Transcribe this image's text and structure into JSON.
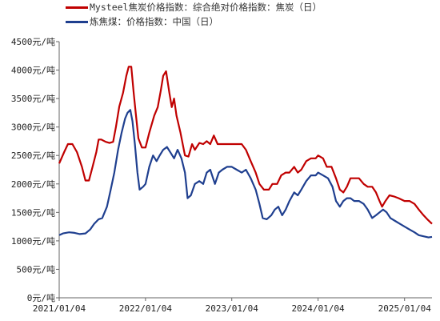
{
  "chart_data": {
    "type": "line",
    "x_ticks": [
      "2021/01/04",
      "2022/01/04",
      "2023/01/04",
      "2024/01/04",
      "2025/01/04"
    ],
    "y_ticks": [
      "0元/吨",
      "500元/吨",
      "1000元/吨",
      "1500元/吨",
      "2000元/吨",
      "2500元/吨",
      "3000元/吨",
      "3500元/吨",
      "4000元/吨",
      "4500元/吨"
    ],
    "ylim": [
      0,
      4500
    ],
    "xlim": [
      "2021-01-04",
      "2025-04-30"
    ],
    "grid": false,
    "legend_position": "top-left",
    "series": [
      {
        "name": "Mysteel焦炭价格指数：综合绝对价格指数：焦炭（日）",
        "color": "#c00000",
        "points": [
          [
            "2021-01-04",
            2360
          ],
          [
            "2021-01-25",
            2560
          ],
          [
            "2021-02-10",
            2700
          ],
          [
            "2021-03-01",
            2700
          ],
          [
            "2021-03-20",
            2560
          ],
          [
            "2021-04-10",
            2300
          ],
          [
            "2021-04-25",
            2060
          ],
          [
            "2021-05-10",
            2060
          ],
          [
            "2021-05-25",
            2300
          ],
          [
            "2021-06-10",
            2560
          ],
          [
            "2021-06-20",
            2780
          ],
          [
            "2021-07-01",
            2780
          ],
          [
            "2021-07-20",
            2740
          ],
          [
            "2021-08-05",
            2720
          ],
          [
            "2021-08-20",
            2740
          ],
          [
            "2021-09-01",
            3000
          ],
          [
            "2021-09-15",
            3360
          ],
          [
            "2021-10-01",
            3600
          ],
          [
            "2021-10-15",
            3900
          ],
          [
            "2021-10-25",
            4060
          ],
          [
            "2021-11-05",
            4060
          ],
          [
            "2021-11-15",
            3600
          ],
          [
            "2021-11-25",
            3200
          ],
          [
            "2021-12-05",
            2800
          ],
          [
            "2021-12-20",
            2640
          ],
          [
            "2022-01-04",
            2640
          ],
          [
            "2022-01-20",
            2900
          ],
          [
            "2022-02-10",
            3200
          ],
          [
            "2022-02-25",
            3350
          ],
          [
            "2022-03-10",
            3650
          ],
          [
            "2022-03-20",
            3900
          ],
          [
            "2022-04-01",
            3980
          ],
          [
            "2022-04-15",
            3600
          ],
          [
            "2022-04-25",
            3350
          ],
          [
            "2022-05-05",
            3500
          ],
          [
            "2022-05-15",
            3200
          ],
          [
            "2022-06-01",
            2900
          ],
          [
            "2022-06-20",
            2500
          ],
          [
            "2022-07-05",
            2480
          ],
          [
            "2022-07-20",
            2700
          ],
          [
            "2022-08-01",
            2600
          ],
          [
            "2022-08-20",
            2720
          ],
          [
            "2022-09-05",
            2700
          ],
          [
            "2022-09-20",
            2750
          ],
          [
            "2022-10-05",
            2700
          ],
          [
            "2022-10-20",
            2850
          ],
          [
            "2022-11-05",
            2700
          ],
          [
            "2022-11-25",
            2700
          ],
          [
            "2022-12-15",
            2700
          ],
          [
            "2023-01-04",
            2700
          ],
          [
            "2023-01-25",
            2700
          ],
          [
            "2023-02-15",
            2700
          ],
          [
            "2023-03-05",
            2600
          ],
          [
            "2023-03-25",
            2400
          ],
          [
            "2023-04-15",
            2200
          ],
          [
            "2023-05-01",
            2000
          ],
          [
            "2023-05-20",
            1900
          ],
          [
            "2023-06-10",
            1900
          ],
          [
            "2023-06-25",
            2000
          ],
          [
            "2023-07-15",
            2000
          ],
          [
            "2023-08-01",
            2150
          ],
          [
            "2023-08-20",
            2200
          ],
          [
            "2023-09-05",
            2200
          ],
          [
            "2023-09-25",
            2300
          ],
          [
            "2023-10-10",
            2200
          ],
          [
            "2023-10-25",
            2250
          ],
          [
            "2023-11-15",
            2400
          ],
          [
            "2023-12-05",
            2450
          ],
          [
            "2023-12-25",
            2450
          ],
          [
            "2024-01-04",
            2500
          ],
          [
            "2024-01-25",
            2450
          ],
          [
            "2024-02-10",
            2300
          ],
          [
            "2024-03-01",
            2300
          ],
          [
            "2024-03-20",
            2100
          ],
          [
            "2024-04-05",
            1900
          ],
          [
            "2024-04-20",
            1850
          ],
          [
            "2024-05-05",
            1950
          ],
          [
            "2024-05-20",
            2100
          ],
          [
            "2024-06-05",
            2100
          ],
          [
            "2024-06-25",
            2100
          ],
          [
            "2024-07-15",
            2000
          ],
          [
            "2024-08-01",
            1950
          ],
          [
            "2024-08-20",
            1950
          ],
          [
            "2024-09-05",
            1850
          ],
          [
            "2024-09-20",
            1700
          ],
          [
            "2024-10-01",
            1600
          ],
          [
            "2024-10-15",
            1700
          ],
          [
            "2024-11-01",
            1800
          ],
          [
            "2024-11-20",
            1780
          ],
          [
            "2024-12-10",
            1750
          ],
          [
            "2025-01-04",
            1700
          ],
          [
            "2025-01-25",
            1700
          ],
          [
            "2025-02-15",
            1650
          ],
          [
            "2025-03-05",
            1550
          ],
          [
            "2025-03-25",
            1450
          ],
          [
            "2025-04-10",
            1380
          ],
          [
            "2025-04-30",
            1300
          ]
        ]
      },
      {
        "name": "炼焦煤：价格指数：中国（日）",
        "color": "#1f3f8f",
        "points": [
          [
            "2021-01-04",
            1100
          ],
          [
            "2021-01-20",
            1130
          ],
          [
            "2021-02-15",
            1150
          ],
          [
            "2021-03-10",
            1140
          ],
          [
            "2021-04-01",
            1120
          ],
          [
            "2021-04-25",
            1130
          ],
          [
            "2021-05-15",
            1200
          ],
          [
            "2021-06-01",
            1300
          ],
          [
            "2021-06-20",
            1380
          ],
          [
            "2021-07-05",
            1400
          ],
          [
            "2021-07-25",
            1600
          ],
          [
            "2021-08-10",
            1900
          ],
          [
            "2021-08-25",
            2200
          ],
          [
            "2021-09-10",
            2600
          ],
          [
            "2021-09-25",
            2900
          ],
          [
            "2021-10-10",
            3150
          ],
          [
            "2021-10-20",
            3250
          ],
          [
            "2021-11-01",
            3300
          ],
          [
            "2021-11-10",
            3100
          ],
          [
            "2021-11-20",
            2700
          ],
          [
            "2021-12-01",
            2200
          ],
          [
            "2021-12-10",
            1900
          ],
          [
            "2021-12-25",
            1950
          ],
          [
            "2022-01-04",
            2000
          ],
          [
            "2022-01-20",
            2300
          ],
          [
            "2022-02-05",
            2500
          ],
          [
            "2022-02-20",
            2400
          ],
          [
            "2022-03-05",
            2500
          ],
          [
            "2022-03-20",
            2600
          ],
          [
            "2022-04-05",
            2650
          ],
          [
            "2022-04-20",
            2550
          ],
          [
            "2022-05-05",
            2450
          ],
          [
            "2022-05-20",
            2600
          ],
          [
            "2022-06-05",
            2450
          ],
          [
            "2022-06-20",
            2200
          ],
          [
            "2022-07-01",
            1750
          ],
          [
            "2022-07-15",
            1800
          ],
          [
            "2022-08-01",
            2000
          ],
          [
            "2022-08-20",
            2050
          ],
          [
            "2022-09-05",
            2000
          ],
          [
            "2022-09-20",
            2200
          ],
          [
            "2022-10-05",
            2250
          ],
          [
            "2022-10-25",
            2000
          ],
          [
            "2022-11-10",
            2200
          ],
          [
            "2022-11-25",
            2250
          ],
          [
            "2022-12-15",
            2300
          ],
          [
            "2023-01-04",
            2300
          ],
          [
            "2023-01-25",
            2250
          ],
          [
            "2023-02-15",
            2200
          ],
          [
            "2023-03-05",
            2250
          ],
          [
            "2023-03-25",
            2100
          ],
          [
            "2023-04-15",
            1900
          ],
          [
            "2023-05-01",
            1650
          ],
          [
            "2023-05-15",
            1400
          ],
          [
            "2023-06-01",
            1380
          ],
          [
            "2023-06-20",
            1450
          ],
          [
            "2023-07-05",
            1550
          ],
          [
            "2023-07-20",
            1600
          ],
          [
            "2023-08-05",
            1450
          ],
          [
            "2023-08-20",
            1550
          ],
          [
            "2023-09-05",
            1700
          ],
          [
            "2023-09-25",
            1850
          ],
          [
            "2023-10-10",
            1800
          ],
          [
            "2023-10-25",
            1900
          ],
          [
            "2023-11-15",
            2050
          ],
          [
            "2023-12-05",
            2150
          ],
          [
            "2023-12-25",
            2150
          ],
          [
            "2024-01-04",
            2200
          ],
          [
            "2024-01-25",
            2150
          ],
          [
            "2024-02-15",
            2100
          ],
          [
            "2024-03-05",
            1950
          ],
          [
            "2024-03-20",
            1700
          ],
          [
            "2024-04-05",
            1600
          ],
          [
            "2024-04-20",
            1700
          ],
          [
            "2024-05-05",
            1750
          ],
          [
            "2024-05-20",
            1750
          ],
          [
            "2024-06-05",
            1700
          ],
          [
            "2024-06-25",
            1700
          ],
          [
            "2024-07-15",
            1650
          ],
          [
            "2024-08-01",
            1550
          ],
          [
            "2024-08-20",
            1400
          ],
          [
            "2024-09-05",
            1450
          ],
          [
            "2024-09-20",
            1500
          ],
          [
            "2024-10-05",
            1550
          ],
          [
            "2024-10-20",
            1500
          ],
          [
            "2024-11-05",
            1400
          ],
          [
            "2024-11-25",
            1350
          ],
          [
            "2024-12-15",
            1300
          ],
          [
            "2025-01-04",
            1250
          ],
          [
            "2025-01-25",
            1200
          ],
          [
            "2025-02-15",
            1150
          ],
          [
            "2025-03-05",
            1100
          ],
          [
            "2025-03-25",
            1080
          ],
          [
            "2025-04-15",
            1060
          ],
          [
            "2025-04-30",
            1070
          ]
        ]
      }
    ]
  }
}
